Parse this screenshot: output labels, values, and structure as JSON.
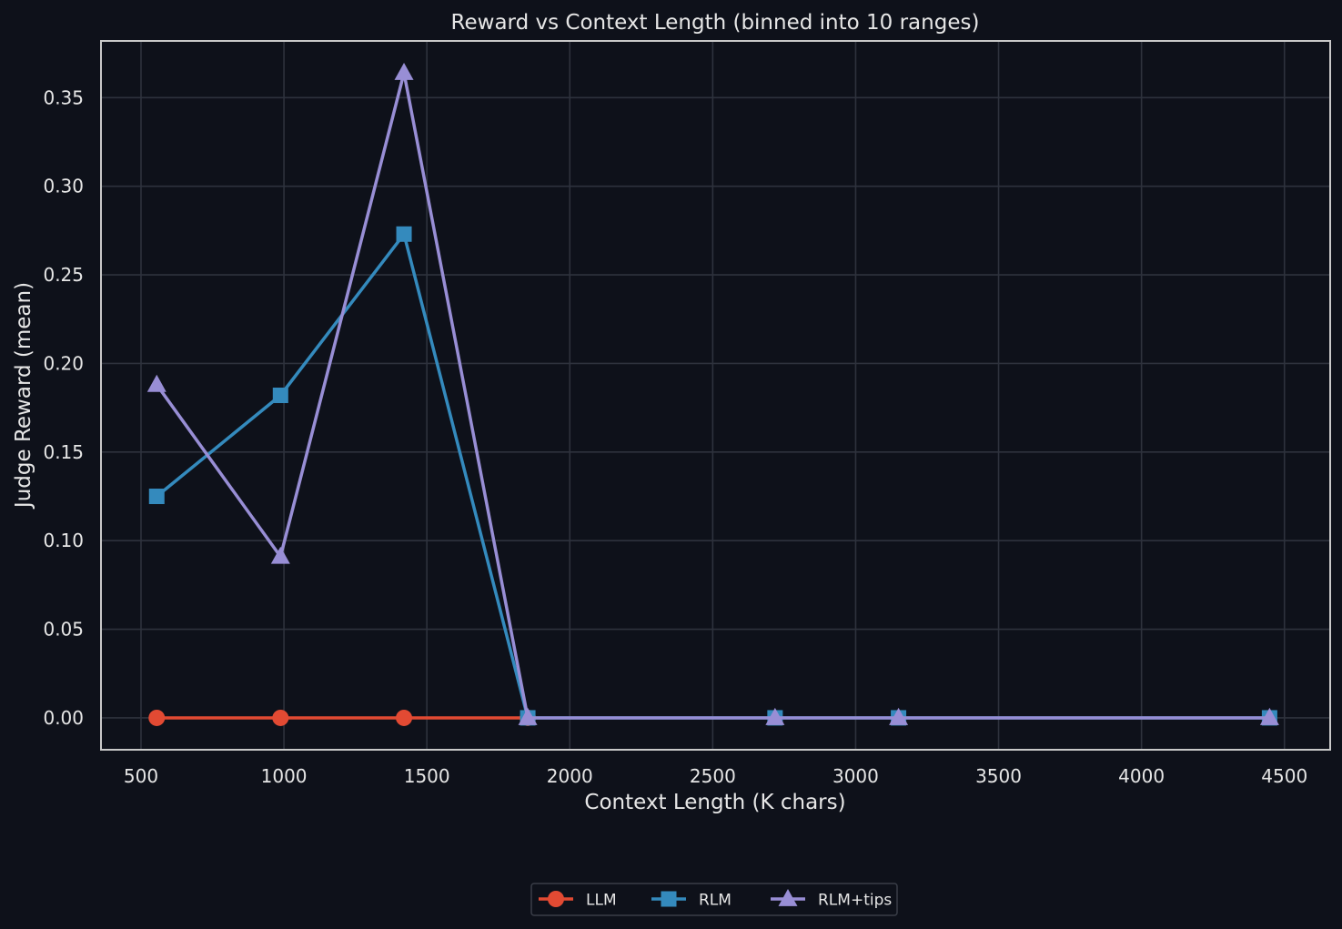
{
  "chart_data": {
    "type": "line",
    "title": "Reward vs Context Length (binned into 10 ranges)",
    "xlabel": "Context Length (K chars)",
    "ylabel": "Judge Reward (mean)",
    "xlim": [
      360,
      4660
    ],
    "ylim": [
      -0.018,
      0.382
    ],
    "xticks": [
      500,
      1000,
      1500,
      2000,
      2500,
      3000,
      3500,
      4000,
      4500
    ],
    "xtick_labels": [
      "500",
      "1000",
      "1500",
      "2000",
      "2500",
      "3000",
      "3500",
      "4000",
      "4500"
    ],
    "yticks": [
      0,
      0.05,
      0.1,
      0.15,
      0.2,
      0.25,
      0.3,
      0.35
    ],
    "ytick_labels": [
      "0.00",
      "0.05",
      "0.10",
      "0.15",
      "0.20",
      "0.25",
      "0.30",
      "0.35"
    ],
    "grid": true,
    "legend_position": "bottom-center",
    "series": [
      {
        "name": "LLM",
        "color": "#e24a33",
        "marker": "circle",
        "points": [
          [
            555,
            0
          ],
          [
            988,
            0
          ],
          [
            1420,
            0
          ],
          [
            1853,
            0
          ]
        ]
      },
      {
        "name": "RLM",
        "color": "#348abd",
        "marker": "square",
        "points": [
          [
            555,
            0.125
          ],
          [
            988,
            0.182
          ],
          [
            1420,
            0.273
          ],
          [
            1853,
            0
          ],
          [
            2718,
            0
          ],
          [
            3150,
            0
          ],
          [
            4448,
            0
          ]
        ]
      },
      {
        "name": "RLM+tips",
        "color": "#988ed5",
        "marker": "triangle",
        "points": [
          [
            555,
            0.188
          ],
          [
            988,
            0.091
          ],
          [
            1420,
            0.364
          ],
          [
            1853,
            0
          ],
          [
            2718,
            0
          ],
          [
            3150,
            0
          ],
          [
            4448,
            0
          ]
        ]
      }
    ]
  },
  "colors": {
    "background": "#0e111a",
    "plot_background": "#0e111a",
    "grid": "#2e323d",
    "frame": "#c8c8c8",
    "text": "#e6e6e6"
  }
}
